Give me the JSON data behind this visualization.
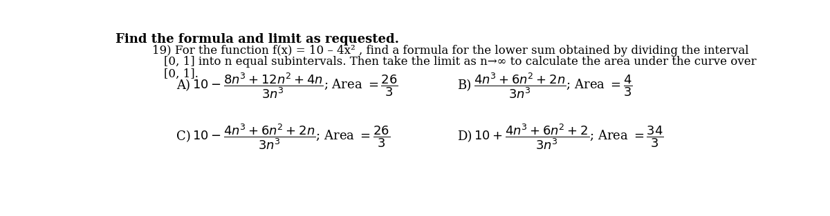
{
  "title": "Find the formula and limit as requested.",
  "background_color": "#ffffff",
  "text_color": "#000000",
  "figsize": [
    12.0,
    3.13
  ],
  "dpi": 100,
  "question_number": "19)",
  "question_text1": "For the function f(x) = 10 – 4x² , find a formula for the lower sum obtained by dividing the interval",
  "question_text2": "[0, 1] into n equal subintervals. Then take the limit as n→∞ to calculate the area under the curve over",
  "question_text3": "[0, 1].",
  "optA_math": "$10 - \\dfrac{8n^3 + 12n^2 + 4n}{3n^3}$; Area $= \\dfrac{26}{3}$",
  "optA_label": "A)",
  "optB_math": "$\\dfrac{4n^3 + 6n^2 + 2n}{3n^3}$; Area $= \\dfrac{4}{3}$",
  "optB_label": "B)",
  "optC_math": "$10 - \\dfrac{4n^3 + 6n^2 + 2n}{3n^3}$; Area $= \\dfrac{26}{3}$",
  "optC_label": "C)",
  "optD_math": "$10 + \\dfrac{4n^3 + 6n^2 + 2}{3n^3}$; Area $= \\dfrac{34}{3}$",
  "optD_label": "D)"
}
